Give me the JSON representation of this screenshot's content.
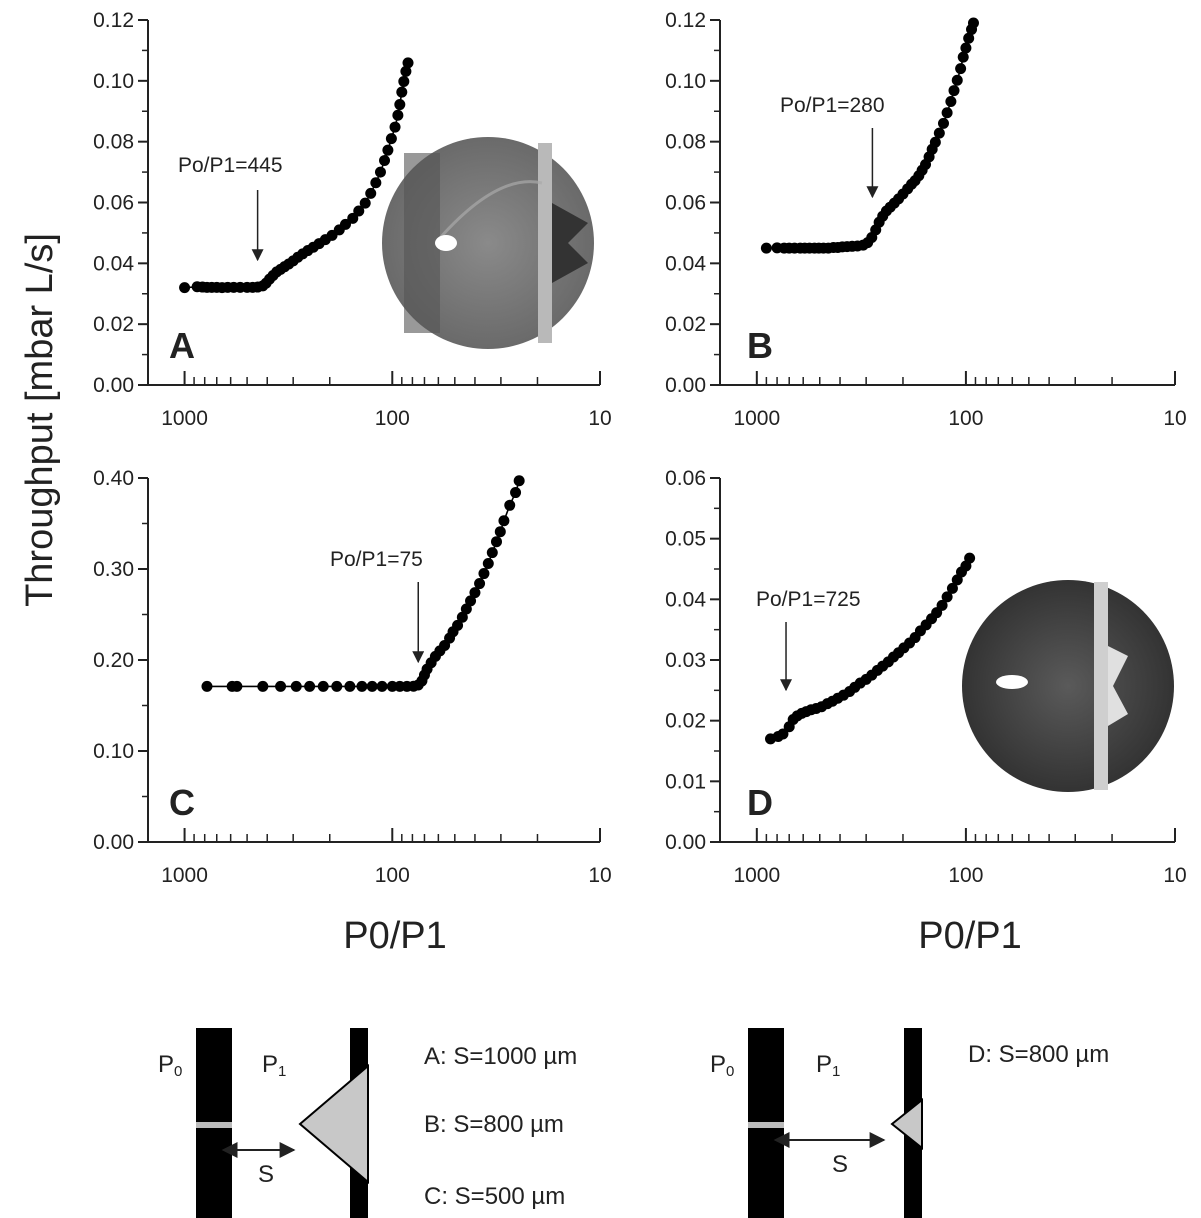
{
  "figure": {
    "y_axis_title": "Throughput [mbar L/s]",
    "x_axis_title": "P0/P1",
    "x_tick_labels": [
      "1000",
      "100",
      "10"
    ]
  },
  "schematics": [
    {
      "p0_label": "P",
      "p0_sub": "0",
      "p1_label": "P",
      "p1_sub": "1",
      "s_label": "S",
      "spacings": [
        "A:  S=1000 µm",
        "B:  S=800 µm",
        "C:  S=500 µm"
      ]
    },
    {
      "p0_label": "P",
      "p0_sub": "0",
      "p1_label": "P",
      "p1_sub": "1",
      "s_label": "S",
      "spacings": [
        "D:  S=800 µm"
      ]
    }
  ],
  "chart_data": [
    {
      "type": "line",
      "panel": "A",
      "xscale": "log",
      "xreversed": true,
      "xlim": [
        10,
        1500
      ],
      "ylim": [
        0,
        0.12
      ],
      "yticks": [
        "0.00",
        "0.02",
        "0.04",
        "0.06",
        "0.08",
        "0.10",
        "0.12"
      ],
      "annotation": "Po/P1=445",
      "annotation_x": 445,
      "has_inset_image": true,
      "points": [
        [
          1000,
          0.032
        ],
        [
          870,
          0.0323
        ],
        [
          820,
          0.0322
        ],
        [
          780,
          0.0321
        ],
        [
          740,
          0.0321
        ],
        [
          700,
          0.0321
        ],
        [
          660,
          0.032
        ],
        [
          620,
          0.0321
        ],
        [
          580,
          0.0321
        ],
        [
          540,
          0.0321
        ],
        [
          500,
          0.0321
        ],
        [
          470,
          0.0321
        ],
        [
          445,
          0.0322
        ],
        [
          420,
          0.0326
        ],
        [
          405,
          0.0335
        ],
        [
          390,
          0.0348
        ],
        [
          375,
          0.036
        ],
        [
          360,
          0.0372
        ],
        [
          345,
          0.038
        ],
        [
          330,
          0.0389
        ],
        [
          315,
          0.0398
        ],
        [
          300,
          0.0408
        ],
        [
          285,
          0.042
        ],
        [
          270,
          0.0431
        ],
        [
          255,
          0.0442
        ],
        [
          240,
          0.0453
        ],
        [
          225,
          0.0465
        ],
        [
          210,
          0.0478
        ],
        [
          195,
          0.0492
        ],
        [
          180,
          0.051
        ],
        [
          168,
          0.0528
        ],
        [
          155,
          0.0548
        ],
        [
          145,
          0.0572
        ],
        [
          135,
          0.0598
        ],
        [
          127,
          0.063
        ],
        [
          120,
          0.0665
        ],
        [
          114,
          0.07
        ],
        [
          109,
          0.0738
        ],
        [
          105,
          0.0772
        ],
        [
          101,
          0.081
        ],
        [
          97,
          0.0848
        ],
        [
          94,
          0.0887
        ],
        [
          92,
          0.0922
        ],
        [
          90,
          0.0963
        ],
        [
          88,
          0.0998
        ],
        [
          86,
          0.1031
        ],
        [
          84,
          0.1059
        ]
      ]
    },
    {
      "type": "line",
      "panel": "B",
      "xscale": "log",
      "xreversed": true,
      "xlim": [
        10,
        1500
      ],
      "ylim": [
        0,
        0.12
      ],
      "yticks": [
        "0.00",
        "0.02",
        "0.04",
        "0.06",
        "0.08",
        "0.10",
        "0.12"
      ],
      "annotation": "Po/P1=280",
      "annotation_x": 280,
      "has_inset_image": false,
      "points": [
        [
          900,
          0.045
        ],
        [
          800,
          0.0451
        ],
        [
          740,
          0.045
        ],
        [
          700,
          0.045
        ],
        [
          660,
          0.045
        ],
        [
          620,
          0.045
        ],
        [
          590,
          0.045
        ],
        [
          560,
          0.045
        ],
        [
          530,
          0.045
        ],
        [
          505,
          0.045
        ],
        [
          480,
          0.045
        ],
        [
          455,
          0.045
        ],
        [
          430,
          0.0452
        ],
        [
          410,
          0.0452
        ],
        [
          390,
          0.0454
        ],
        [
          370,
          0.0455
        ],
        [
          350,
          0.0456
        ],
        [
          330,
          0.0457
        ],
        [
          310,
          0.046
        ],
        [
          295,
          0.0468
        ],
        [
          282,
          0.0485
        ],
        [
          270,
          0.051
        ],
        [
          260,
          0.0535
        ],
        [
          250,
          0.0555
        ],
        [
          240,
          0.0572
        ],
        [
          230,
          0.0585
        ],
        [
          220,
          0.0598
        ],
        [
          210,
          0.0612
        ],
        [
          200,
          0.0628
        ],
        [
          190,
          0.0645
        ],
        [
          182,
          0.066
        ],
        [
          175,
          0.0672
        ],
        [
          168,
          0.0688
        ],
        [
          162,
          0.0706
        ],
        [
          156,
          0.0725
        ],
        [
          150,
          0.075
        ],
        [
          145,
          0.0775
        ],
        [
          140,
          0.0798
        ],
        [
          134,
          0.0828
        ],
        [
          128,
          0.086
        ],
        [
          123,
          0.0895
        ],
        [
          118,
          0.0932
        ],
        [
          114,
          0.0968
        ],
        [
          110,
          0.1002
        ],
        [
          106,
          0.104
        ],
        [
          103,
          0.1078
        ],
        [
          100,
          0.1108
        ],
        [
          97,
          0.114
        ],
        [
          94,
          0.1169
        ],
        [
          92,
          0.119
        ]
      ]
    },
    {
      "type": "line",
      "panel": "C",
      "xscale": "log",
      "xreversed": true,
      "xlim": [
        10,
        1500
      ],
      "ylim": [
        0,
        0.4
      ],
      "yticks": [
        "0.00",
        "0.10",
        "0.20",
        "0.30",
        "0.40"
      ],
      "annotation": "Po/P1=75",
      "annotation_x": 75,
      "has_inset_image": false,
      "points": [
        [
          780,
          0.171
        ],
        [
          590,
          0.171
        ],
        [
          560,
          0.171
        ],
        [
          420,
          0.171
        ],
        [
          345,
          0.171
        ],
        [
          290,
          0.171
        ],
        [
          250,
          0.171
        ],
        [
          215,
          0.171
        ],
        [
          185,
          0.171
        ],
        [
          160,
          0.171
        ],
        [
          140,
          0.171
        ],
        [
          125,
          0.171
        ],
        [
          112,
          0.171
        ],
        [
          100,
          0.171
        ],
        [
          92,
          0.171
        ],
        [
          85,
          0.171
        ],
        [
          79,
          0.1712
        ],
        [
          75,
          0.1725
        ],
        [
          72,
          0.177
        ],
        [
          70,
          0.1835
        ],
        [
          68,
          0.19
        ],
        [
          65,
          0.197
        ],
        [
          62,
          0.204
        ],
        [
          59,
          0.21
        ],
        [
          56,
          0.216
        ],
        [
          53,
          0.224
        ],
        [
          51,
          0.231
        ],
        [
          48.5,
          0.238
        ],
        [
          46,
          0.247
        ],
        [
          44,
          0.256
        ],
        [
          42,
          0.265
        ],
        [
          40,
          0.274
        ],
        [
          38,
          0.284
        ],
        [
          36.2,
          0.295
        ],
        [
          34.5,
          0.306
        ],
        [
          33,
          0.318
        ],
        [
          31.5,
          0.33
        ],
        [
          30.2,
          0.341
        ],
        [
          29,
          0.353
        ],
        [
          27.2,
          0.37
        ],
        [
          25.5,
          0.384
        ],
        [
          24.5,
          0.397
        ]
      ]
    },
    {
      "type": "line",
      "panel": "D",
      "xscale": "log",
      "xreversed": true,
      "xlim": [
        10,
        1500
      ],
      "ylim": [
        0,
        0.06
      ],
      "yticks": [
        "0.00",
        "0.01",
        "0.02",
        "0.03",
        "0.04",
        "0.05",
        "0.06"
      ],
      "annotation": "Po/P1=725",
      "annotation_x": 725,
      "has_inset_image": true,
      "points": [
        [
          860,
          0.017
        ],
        [
          790,
          0.0174
        ],
        [
          750,
          0.0178
        ],
        [
          700,
          0.019
        ],
        [
          670,
          0.0202
        ],
        [
          640,
          0.0208
        ],
        [
          610,
          0.0212
        ],
        [
          580,
          0.0215
        ],
        [
          550,
          0.0218
        ],
        [
          520,
          0.022
        ],
        [
          490,
          0.0223
        ],
        [
          460,
          0.0228
        ],
        [
          435,
          0.0232
        ],
        [
          410,
          0.0237
        ],
        [
          385,
          0.0242
        ],
        [
          360,
          0.0248
        ],
        [
          340,
          0.0255
        ],
        [
          320,
          0.0262
        ],
        [
          300,
          0.0268
        ],
        [
          282,
          0.0275
        ],
        [
          265,
          0.0283
        ],
        [
          250,
          0.029
        ],
        [
          235,
          0.0297
        ],
        [
          222,
          0.0305
        ],
        [
          210,
          0.0312
        ],
        [
          198,
          0.032
        ],
        [
          186,
          0.0328
        ],
        [
          175,
          0.0337
        ],
        [
          165,
          0.0348
        ],
        [
          155,
          0.0358
        ],
        [
          146,
          0.0368
        ],
        [
          138,
          0.0378
        ],
        [
          130,
          0.039
        ],
        [
          123,
          0.0404
        ],
        [
          116,
          0.0418
        ],
        [
          110,
          0.0432
        ],
        [
          105,
          0.0445
        ],
        [
          100,
          0.0455
        ],
        [
          96,
          0.0468
        ]
      ]
    }
  ]
}
